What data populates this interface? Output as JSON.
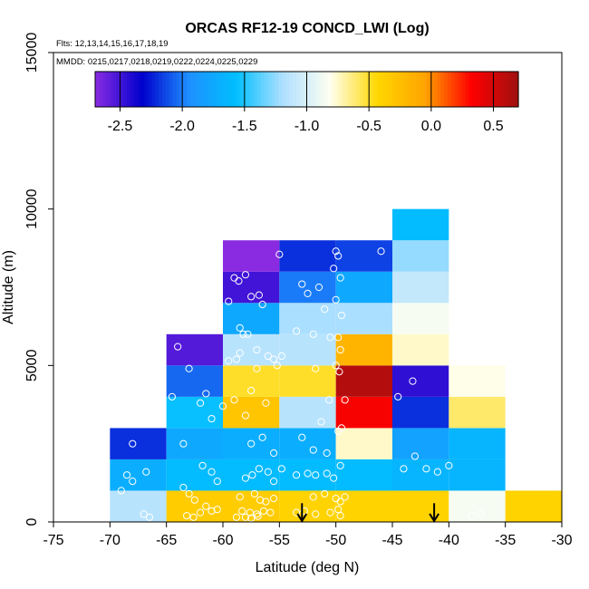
{
  "chart_data": {
    "type": "heatmap",
    "title": "ORCAS RF12-19 CONCD_LWI (Log)",
    "flights_note": "Flts: 12,13,14,15,16,17,18,19",
    "dates_note": "MMDD: 0215,0217,0218,0219,0222,0224,0225,0229",
    "xlabel": "Latitude (deg N)",
    "ylabel": "Altitude (m)",
    "xlim": [
      -75,
      -30
    ],
    "ylim": [
      0,
      15000
    ],
    "xticks": [
      -75,
      -70,
      -65,
      -60,
      -55,
      -50,
      -45,
      -40,
      -35,
      -30
    ],
    "yticks": [
      0,
      5000,
      10000,
      15000
    ],
    "colorbar": {
      "range": [
        -2.7,
        0.7
      ],
      "ticks": [
        -2.5,
        -2.0,
        -1.5,
        -1.0,
        -0.5,
        0.0,
        0.5
      ],
      "tick_labels": [
        "-2.5",
        "-2.0",
        "-1.5",
        "-1.0",
        "-0.5",
        "0.0",
        "0.5"
      ],
      "colors": [
        "#8a2be2",
        "#0000cd",
        "#1e90ff",
        "#00bfff",
        "#b0e0ff",
        "#fffff0",
        "#ffd700",
        "#ffa500",
        "#ff0000",
        "#a01010"
      ]
    },
    "bin_size": {
      "lat": 5,
      "alt": 1000
    },
    "cells": [
      {
        "lat": -70,
        "alt": 0,
        "value": -1.15
      },
      {
        "lat": -70,
        "alt": 1000,
        "value": -1.7
      },
      {
        "lat": -70,
        "alt": 2000,
        "value": -2.2
      },
      {
        "lat": -65,
        "alt": 0,
        "value": -0.35
      },
      {
        "lat": -65,
        "alt": 1000,
        "value": -1.6
      },
      {
        "lat": -65,
        "alt": 2000,
        "value": -1.75
      },
      {
        "lat": -65,
        "alt": 3000,
        "value": -1.55
      },
      {
        "lat": -65,
        "alt": 4000,
        "value": -2.05
      },
      {
        "lat": -65,
        "alt": 5000,
        "value": -2.55
      },
      {
        "lat": -60,
        "alt": 0,
        "value": -0.35
      },
      {
        "lat": -60,
        "alt": 1000,
        "value": -1.6
      },
      {
        "lat": -60,
        "alt": 2000,
        "value": -1.7
      },
      {
        "lat": -60,
        "alt": 3000,
        "value": -0.3
      },
      {
        "lat": -60,
        "alt": 4000,
        "value": -0.5
      },
      {
        "lat": -60,
        "alt": 5000,
        "value": -1.15
      },
      {
        "lat": -60,
        "alt": 6000,
        "value": -1.75
      },
      {
        "lat": -60,
        "alt": 7000,
        "value": -2.5
      },
      {
        "lat": -60,
        "alt": 8000,
        "value": -2.75
      },
      {
        "lat": -55,
        "alt": 0,
        "value": -0.4
      },
      {
        "lat": -55,
        "alt": 1000,
        "value": -1.6
      },
      {
        "lat": -55,
        "alt": 2000,
        "value": -1.7
      },
      {
        "lat": -55,
        "alt": 3000,
        "value": -1.15
      },
      {
        "lat": -55,
        "alt": 4000,
        "value": -0.5
      },
      {
        "lat": -55,
        "alt": 5000,
        "value": -1.15
      },
      {
        "lat": -55,
        "alt": 6000,
        "value": -1.2
      },
      {
        "lat": -55,
        "alt": 7000,
        "value": -2.0
      },
      {
        "lat": -55,
        "alt": 8000,
        "value": -2.2
      },
      {
        "lat": -50,
        "alt": 0,
        "value": -0.4
      },
      {
        "lat": -50,
        "alt": 1000,
        "value": -1.6
      },
      {
        "lat": -50,
        "alt": 2000,
        "value": -0.75
      },
      {
        "lat": -50,
        "alt": 3000,
        "value": 0.35
      },
      {
        "lat": -50,
        "alt": 4000,
        "value": 0.62
      },
      {
        "lat": -50,
        "alt": 5000,
        "value": -0.18
      },
      {
        "lat": -50,
        "alt": 6000,
        "value": -1.2
      },
      {
        "lat": -50,
        "alt": 7000,
        "value": -1.75
      },
      {
        "lat": -50,
        "alt": 8000,
        "value": -2.15
      },
      {
        "lat": -45,
        "alt": 0,
        "value": -0.4
      },
      {
        "lat": -45,
        "alt": 1000,
        "value": -1.65
      },
      {
        "lat": -45,
        "alt": 2000,
        "value": -1.8
      },
      {
        "lat": -45,
        "alt": 3000,
        "value": -2.2
      },
      {
        "lat": -45,
        "alt": 4000,
        "value": -2.45
      },
      {
        "lat": -45,
        "alt": 5000,
        "value": -0.75
      },
      {
        "lat": -45,
        "alt": 6000,
        "value": -0.85
      },
      {
        "lat": -45,
        "alt": 7000,
        "value": -1.1
      },
      {
        "lat": -45,
        "alt": 8000,
        "value": -1.25
      },
      {
        "lat": -45,
        "alt": 9000,
        "value": -1.6
      },
      {
        "lat": -40,
        "alt": 0,
        "value": -0.85
      },
      {
        "lat": -40,
        "alt": 1000,
        "value": -1.65
      },
      {
        "lat": -40,
        "alt": 2000,
        "value": -1.65
      },
      {
        "lat": -40,
        "alt": 3000,
        "value": -0.6
      },
      {
        "lat": -40,
        "alt": 4000,
        "value": -0.8
      },
      {
        "lat": -35,
        "alt": 0,
        "value": -0.4
      }
    ],
    "markers": [
      {
        "lat": -53,
        "label": "arrow"
      },
      {
        "lat": -41.3,
        "label": "arrow"
      }
    ],
    "observations": [
      [
        -68.0,
        2500
      ],
      [
        -68.5,
        1500
      ],
      [
        -68.0,
        1300
      ],
      [
        -66.8,
        1600
      ],
      [
        -67.0,
        250
      ],
      [
        -66.5,
        150
      ],
      [
        -69.0,
        1000
      ],
      [
        -64.0,
        5600
      ],
      [
        -63.0,
        4900
      ],
      [
        -64.5,
        4000
      ],
      [
        -63.5,
        2500
      ],
      [
        -62.0,
        3800
      ],
      [
        -61.5,
        4100
      ],
      [
        -61.0,
        3300
      ],
      [
        -63.5,
        1100
      ],
      [
        -63.0,
        900
      ],
      [
        -62.5,
        700
      ],
      [
        -61.8,
        1800
      ],
      [
        -61.0,
        1600
      ],
      [
        -60.5,
        1300
      ],
      [
        -62.0,
        300
      ],
      [
        -61.0,
        350
      ],
      [
        -63.2,
        200
      ],
      [
        -62.6,
        150
      ],
      [
        -60.5,
        400
      ],
      [
        -61.5,
        500
      ],
      [
        -59.0,
        7800
      ],
      [
        -58.6,
        7700
      ],
      [
        -58.0,
        7900
      ],
      [
        -59.5,
        7050
      ],
      [
        -57.5,
        7200
      ],
      [
        -56.5,
        6950
      ],
      [
        -56.8,
        7250
      ],
      [
        -58.2,
        6000
      ],
      [
        -57.8,
        6000
      ],
      [
        -58.5,
        6200
      ],
      [
        -57.0,
        5500
      ],
      [
        -56.0,
        5300
      ],
      [
        -58.8,
        5200
      ],
      [
        -59.5,
        5150
      ],
      [
        -57.0,
        4900
      ],
      [
        -55.5,
        5200
      ],
      [
        -55.2,
        5000
      ],
      [
        -54.8,
        5300
      ],
      [
        -58.5,
        5400
      ],
      [
        -60.0,
        3700
      ],
      [
        -59.0,
        3900
      ],
      [
        -57.5,
        4200
      ],
      [
        -58.0,
        3400
      ],
      [
        -56.2,
        3800
      ],
      [
        -57.5,
        2500
      ],
      [
        -56.5,
        2700
      ],
      [
        -55.5,
        2200
      ],
      [
        -58.0,
        1400
      ],
      [
        -57.4,
        1500
      ],
      [
        -56.8,
        1700
      ],
      [
        -56.0,
        1600
      ],
      [
        -55.5,
        1300
      ],
      [
        -54.8,
        1700
      ],
      [
        -58.5,
        800
      ],
      [
        -57.2,
        900
      ],
      [
        -56.7,
        700
      ],
      [
        -56.2,
        650
      ],
      [
        -55.5,
        750
      ],
      [
        -58.3,
        350
      ],
      [
        -57.6,
        300
      ],
      [
        -57.0,
        250
      ],
      [
        -56.4,
        350
      ],
      [
        -55.8,
        300
      ],
      [
        -58.8,
        150
      ],
      [
        -58.0,
        150
      ],
      [
        -57.5,
        120
      ],
      [
        -56.9,
        180
      ],
      [
        -55.0,
        8550
      ],
      [
        -53.0,
        7600
      ],
      [
        -52.5,
        7300
      ],
      [
        -51.5,
        7500
      ],
      [
        -51.0,
        6800
      ],
      [
        -53.5,
        6100
      ],
      [
        -52.0,
        6000
      ],
      [
        -50.5,
        5900
      ],
      [
        -51.8,
        4900
      ],
      [
        -50.6,
        3900
      ],
      [
        -51.3,
        3200
      ],
      [
        -53.0,
        2700
      ],
      [
        -52.0,
        2300
      ],
      [
        -50.8,
        2200
      ],
      [
        -53.5,
        1500
      ],
      [
        -52.5,
        1550
      ],
      [
        -51.8,
        1500
      ],
      [
        -50.8,
        1550
      ],
      [
        -50.2,
        1400
      ],
      [
        -52.0,
        800
      ],
      [
        -51.0,
        900
      ],
      [
        -50.0,
        750
      ],
      [
        -49.6,
        650
      ],
      [
        -53.5,
        300
      ],
      [
        -52.8,
        350
      ],
      [
        -51.8,
        250
      ],
      [
        -50.5,
        300
      ],
      [
        -49.8,
        400
      ],
      [
        -50.3,
        9200
      ],
      [
        -50.0,
        8650
      ],
      [
        -49.8,
        8500
      ],
      [
        -50.2,
        8100
      ],
      [
        -49.6,
        7800
      ],
      [
        -50.0,
        7100
      ],
      [
        -49.5,
        6600
      ],
      [
        -49.8,
        5900
      ],
      [
        -49.6,
        5500
      ],
      [
        -50.0,
        5000
      ],
      [
        -49.7,
        4800
      ],
      [
        -49.2,
        3900
      ],
      [
        -49.5,
        3000
      ],
      [
        -49.8,
        2900
      ],
      [
        -49.6,
        1800
      ],
      [
        -49.2,
        800
      ],
      [
        -49.6,
        200
      ],
      [
        -46.0,
        8650
      ],
      [
        -44.5,
        4000
      ],
      [
        -43.2,
        4500
      ],
      [
        -44.0,
        1700
      ],
      [
        -43.0,
        2100
      ],
      [
        -42.0,
        1700
      ],
      [
        -41.0,
        1600
      ],
      [
        -40.0,
        1800
      ],
      [
        -38.0,
        200
      ],
      [
        -37.2,
        250
      ]
    ]
  }
}
